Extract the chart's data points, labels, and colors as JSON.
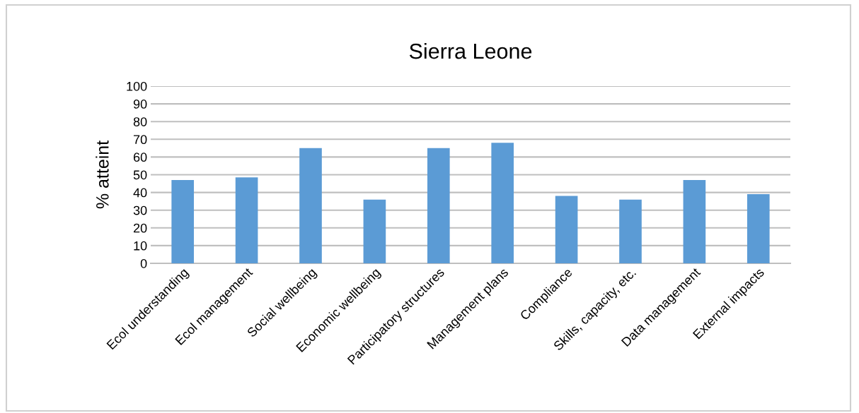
{
  "chart_data": {
    "type": "bar",
    "title": "Sierra Leone",
    "ylabel": "% atteint",
    "categories": [
      "Ecol understanding",
      "Ecol management",
      "Social wellbeing",
      "Economic wellbeing",
      "Participatory structures",
      "Management plans",
      "Compliance",
      "Skills, capacity, etc.",
      "Data management",
      "External impacts"
    ],
    "values": [
      47,
      48.5,
      65,
      36,
      65,
      68,
      38,
      36,
      47,
      39
    ],
    "color": "#5b9bd5",
    "ylim": [
      0,
      100
    ],
    "yticks": [
      0,
      10,
      20,
      30,
      40,
      50,
      60,
      70,
      80,
      90,
      100
    ],
    "grid": "y"
  }
}
